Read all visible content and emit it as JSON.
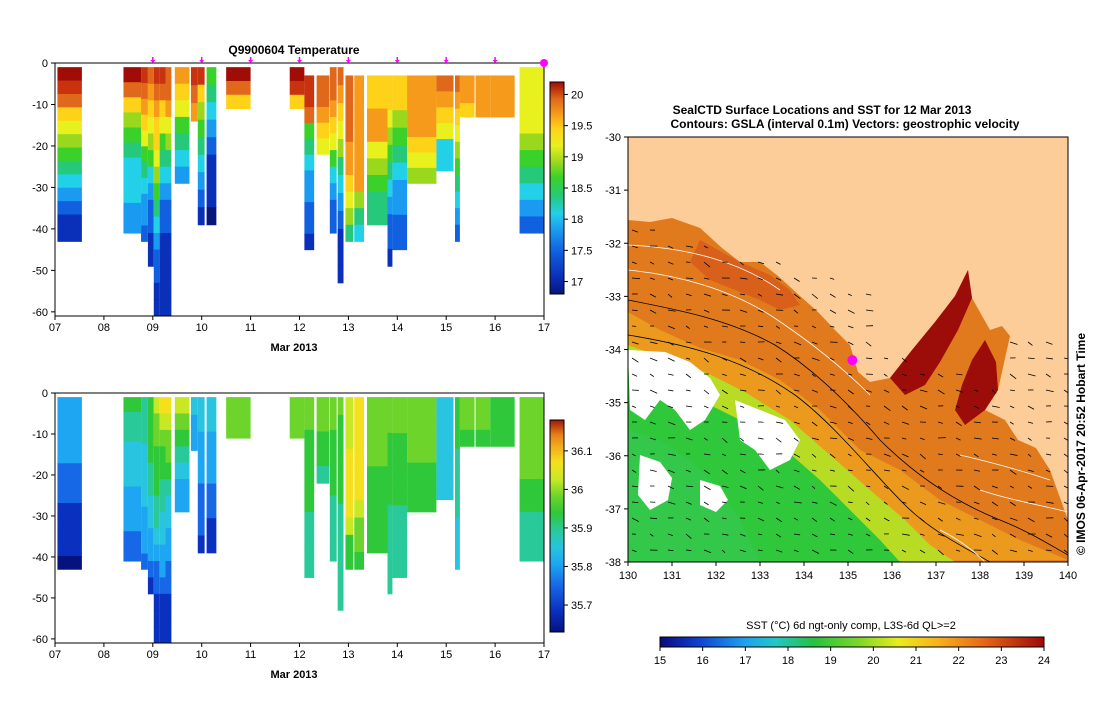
{
  "chart_data": [
    {
      "type": "heatmap",
      "title": "Q9900604  Temperature",
      "xlabel": "Mar 2013",
      "ylabel": "",
      "x_ticks": [
        "07",
        "08",
        "09",
        "10",
        "11",
        "12",
        "13",
        "14",
        "15",
        "16",
        "17"
      ],
      "x_range": [
        7,
        17
      ],
      "y_ticks": [
        "0",
        "-10",
        "-20",
        "-30",
        "-40",
        "-50",
        "-60"
      ],
      "ylim": [
        -61,
        0
      ],
      "colorbar": {
        "ticks": [
          "17",
          "17.5",
          "18",
          "18.5",
          "19",
          "19.5",
          "20"
        ],
        "range": [
          16.8,
          20.2
        ]
      },
      "profile_markers_day": [
        9.0,
        10.0,
        11.0,
        12.0,
        13.0,
        14.0,
        15.0,
        16.0
      ],
      "last_marker_day": 17.0
    },
    {
      "type": "heatmap",
      "title": "",
      "xlabel": "Mar 2013",
      "ylabel": "",
      "x_ticks": [
        "07",
        "08",
        "09",
        "10",
        "11",
        "12",
        "13",
        "14",
        "15",
        "16",
        "17"
      ],
      "x_range": [
        7,
        17
      ],
      "y_ticks": [
        "0",
        "-10",
        "-20",
        "-30",
        "-40",
        "-50",
        "-60"
      ],
      "ylim": [
        -61,
        0
      ],
      "colorbar": {
        "ticks": [
          "35.7",
          "35.8",
          "35.9",
          "36",
          "36.1"
        ],
        "range": [
          35.63,
          36.18
        ]
      }
    },
    {
      "type": "heatmap",
      "title_line1": "SealCTD Surface Locations and SST for 12 Mar 2013",
      "title_line2": "Contours: GSLA (interval 0.1m) Vectors: geostrophic velocity",
      "x_ticks": [
        "130",
        "131",
        "132",
        "133",
        "134",
        "135",
        "136",
        "137",
        "138",
        "139",
        "140"
      ],
      "x_range": [
        130,
        140
      ],
      "y_ticks": [
        "-30",
        "-31",
        "-32",
        "-33",
        "-34",
        "-35",
        "-36",
        "-37",
        "-38"
      ],
      "y_range": [
        -38,
        -30
      ],
      "seal_location": {
        "lon": 135.1,
        "lat": -34.2
      },
      "colorbar_title": "SST (°C) 6d ngt-only comp, L3S-6d QL>=2",
      "colorbar_ticks": [
        "15",
        "16",
        "17",
        "18",
        "19",
        "20",
        "21",
        "22",
        "23",
        "24"
      ],
      "colorbar_range": [
        15,
        24
      ]
    }
  ],
  "stamp": "© IMOS 06-Apr-2017 20:52 Hobart Time",
  "colors": {
    "land": "#fccc99",
    "marker": "#ff00ff",
    "temp_scale": [
      "#08157a",
      "#0a2fb8",
      "#1060e0",
      "#1a9af0",
      "#22d0e8",
      "#26c97a",
      "#3ad22a",
      "#9ad81e",
      "#e8f01e",
      "#ffd21a",
      "#f59a1a",
      "#e0681a",
      "#c8320e",
      "#a00c06"
    ],
    "salt_scale": [
      "#06127e",
      "#0a30c0",
      "#1668e6",
      "#1ea6f2",
      "#28c4e0",
      "#2ac99a",
      "#2ec83a",
      "#6cd42a",
      "#c8e824",
      "#f5e01e",
      "#f2b01c",
      "#e6801a",
      "#c84a10",
      "#a01808"
    ]
  }
}
